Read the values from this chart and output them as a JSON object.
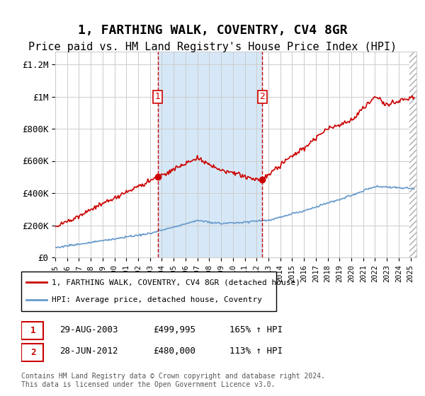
{
  "title": "1, FARTHING WALK, COVENTRY, CV4 8GR",
  "subtitle": "Price paid vs. HM Land Registry's House Price Index (HPI)",
  "title_fontsize": 13,
  "subtitle_fontsize": 11,
  "ylabel_ticks": [
    "£0",
    "£200K",
    "£400K",
    "£600K",
    "£800K",
    "£1M",
    "£1.2M"
  ],
  "ytick_values": [
    0,
    200000,
    400000,
    600000,
    800000,
    1000000,
    1200000
  ],
  "ylim": [
    0,
    1280000
  ],
  "sale1_date": 2003.65,
  "sale1_price": 499995,
  "sale1_label": "1",
  "sale2_date": 2012.49,
  "sale2_price": 480000,
  "sale2_label": "2",
  "shading_color": "#d6e8f7",
  "sale_line_color": "#cc0000",
  "hpi_line_color": "#6699cc",
  "dashed_line_color": "#cc0000",
  "marker_color": "#cc0000",
  "legend_label_red": "1, FARTHING WALK, COVENTRY, CV4 8GR (detached house)",
  "legend_label_blue": "HPI: Average price, detached house, Coventry",
  "table_row1": [
    "1",
    "29-AUG-2003",
    "£499,995",
    "165% ↑ HPI"
  ],
  "table_row2": [
    "2",
    "28-JUN-2012",
    "£480,000",
    "113% ↑ HPI"
  ],
  "footnote": "Contains HM Land Registry data © Crown copyright and database right 2024.\nThis data is licensed under the Open Government Licence v3.0.",
  "xmin": 1995.0,
  "xmax": 2025.5
}
